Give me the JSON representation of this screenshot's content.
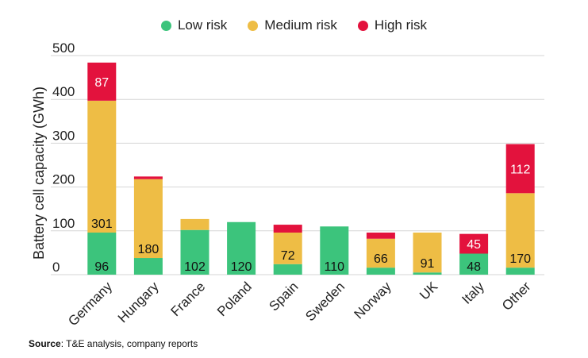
{
  "colors": {
    "low": "#3cc47c",
    "medium": "#eebd45",
    "high": "#e3123d",
    "grid": "#d6d6d6",
    "text": "#222222"
  },
  "source": {
    "label": "Source",
    "text": ": T&E analysis, company reports"
  },
  "chart_data": {
    "type": "bar",
    "stacked": true,
    "ylabel": "Battery cell capacity (GWh)",
    "ylim": [
      0,
      500
    ],
    "yticks": [
      0,
      100,
      200,
      300,
      400,
      500
    ],
    "grid": true,
    "legend_position": "top",
    "categories": [
      "Germany",
      "Hungary",
      "France",
      "Poland",
      "Spain",
      "Sweden",
      "Norway",
      "UK",
      "Italy",
      "Other"
    ],
    "series": [
      {
        "name": "Low risk",
        "color": "#3cc47c",
        "values": [
          96,
          38,
          102,
          120,
          24,
          110,
          16,
          5,
          48,
          16
        ],
        "labels": [
          "96",
          "",
          "102",
          "120",
          "",
          "110",
          "",
          "",
          "48",
          ""
        ]
      },
      {
        "name": "Medium risk",
        "color": "#eebd45",
        "values": [
          301,
          180,
          25,
          0,
          72,
          0,
          66,
          91,
          0,
          170
        ],
        "labels": [
          "301",
          "180",
          "",
          "",
          "72",
          "",
          "66",
          "91",
          "",
          "170"
        ]
      },
      {
        "name": "High risk",
        "color": "#e3123d",
        "values": [
          87,
          6,
          0,
          0,
          18,
          0,
          14,
          0,
          45,
          112
        ],
        "labels": [
          "87",
          "",
          "",
          "",
          "",
          "",
          "",
          "",
          "45",
          "112"
        ]
      }
    ]
  }
}
